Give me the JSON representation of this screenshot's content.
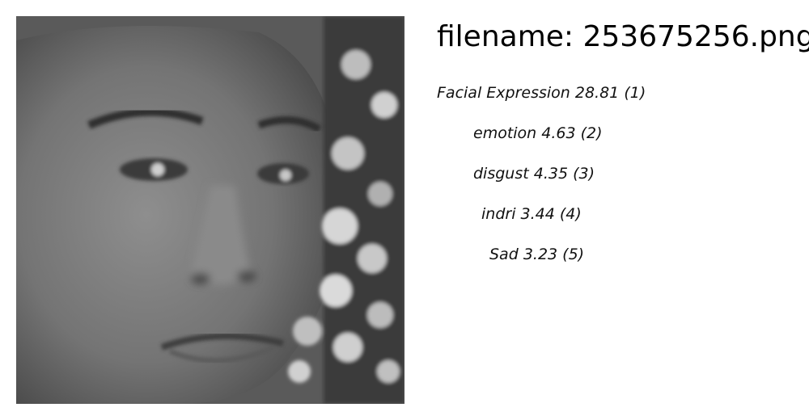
{
  "header": {
    "filename_label": "filename: 253675256.png"
  },
  "image": {
    "alt": "grayscale close-up photo of a face"
  },
  "predictions": [
    {
      "label": "Facial Expression",
      "score": "28.81",
      "rank": "(1)"
    },
    {
      "label": "emotion",
      "score": "4.63",
      "rank": "(2)"
    },
    {
      "label": "disgust",
      "score": "4.35",
      "rank": "(3)"
    },
    {
      "label": "indri",
      "score": "3.44",
      "rank": "(4)"
    },
    {
      "label": "Sad",
      "score": "3.23",
      "rank": "(5)"
    }
  ]
}
